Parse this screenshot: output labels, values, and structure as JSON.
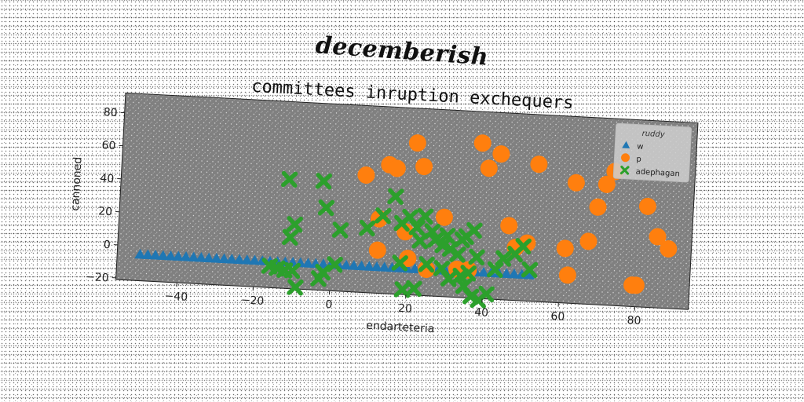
{
  "suptitle": "decemberish",
  "chart_data": {
    "type": "scatter",
    "title": "committees inruption exchequers",
    "xlabel": "endarteteria",
    "ylabel": "cannoned",
    "xlim": [
      -56,
      94
    ],
    "ylim": [
      -21,
      92
    ],
    "xticks": [
      -40,
      -20,
      0,
      20,
      40,
      60,
      80
    ],
    "yticks": [
      -20,
      0,
      20,
      40,
      60,
      80
    ],
    "grid": false,
    "legend": {
      "title": "ruddy",
      "position": "top-right"
    },
    "series": [
      {
        "name": "w",
        "marker": "triangle",
        "color": "#1f77b4",
        "points": [
          [
            -50,
            -5
          ],
          [
            -48,
            -5
          ],
          [
            -46,
            -5
          ],
          [
            -44,
            -5
          ],
          [
            -42,
            -5
          ],
          [
            -40,
            -5
          ],
          [
            -38,
            -5
          ],
          [
            -36,
            -5
          ],
          [
            -34,
            -5
          ],
          [
            -32,
            -5
          ],
          [
            -30,
            -5
          ],
          [
            -28,
            -5
          ],
          [
            -26,
            -5
          ],
          [
            -24,
            -5
          ],
          [
            -22,
            -5
          ],
          [
            -20,
            -5
          ],
          [
            -18,
            -5
          ],
          [
            -16,
            -5
          ],
          [
            -14,
            -5
          ],
          [
            -12,
            -5
          ],
          [
            -10,
            -5
          ],
          [
            -8,
            -5
          ],
          [
            -6,
            -5
          ],
          [
            -4,
            -5
          ],
          [
            -2,
            -5
          ],
          [
            0,
            -5
          ],
          [
            2,
            -5
          ],
          [
            4,
            -5
          ],
          [
            6,
            -5
          ],
          [
            8,
            -5
          ],
          [
            10,
            -5
          ],
          [
            12,
            -5
          ],
          [
            14,
            -5
          ],
          [
            16,
            -5
          ],
          [
            18,
            -5
          ],
          [
            20,
            -5
          ],
          [
            22,
            -5
          ],
          [
            24,
            -5
          ],
          [
            26,
            -5
          ],
          [
            28,
            -5
          ],
          [
            30,
            -5
          ],
          [
            32,
            -5
          ],
          [
            34,
            -5
          ],
          [
            36,
            -5
          ],
          [
            38,
            -5
          ],
          [
            40,
            -5
          ],
          [
            42,
            -5
          ],
          [
            44,
            -5
          ],
          [
            46,
            -5
          ],
          [
            48,
            -5
          ],
          [
            50,
            -5
          ],
          [
            52,
            -5
          ]
        ]
      },
      {
        "name": "p",
        "marker": "circle",
        "color": "#ff7f0e",
        "points": [
          [
            8,
            50
          ],
          [
            14,
            57
          ],
          [
            16,
            55
          ],
          [
            21,
            71
          ],
          [
            23,
            57
          ],
          [
            12,
            24
          ],
          [
            12,
            5
          ],
          [
            19,
            17
          ],
          [
            20,
            1
          ],
          [
            25,
            -5
          ],
          [
            29,
            27
          ],
          [
            33,
            -4
          ],
          [
            36,
            -4
          ],
          [
            38,
            73
          ],
          [
            40,
            58
          ],
          [
            43,
            67
          ],
          [
            46,
            24
          ],
          [
            48,
            11
          ],
          [
            51,
            14
          ],
          [
            53,
            62
          ],
          [
            61,
            12
          ],
          [
            62,
            -4
          ],
          [
            63,
            52
          ],
          [
            67,
            17
          ],
          [
            69,
            38
          ],
          [
            71,
            52
          ],
          [
            73,
            60
          ],
          [
            79,
            -8
          ],
          [
            80,
            -8
          ],
          [
            82,
            40
          ],
          [
            85,
            22
          ],
          [
            88,
            15
          ]
        ]
      },
      {
        "name": "adephagan",
        "marker": "x",
        "color": "#2ca02c",
        "points": [
          [
            -12,
            45
          ],
          [
            -3,
            45
          ],
          [
            -2,
            29
          ],
          [
            -10,
            18
          ],
          [
            -11,
            10
          ],
          [
            -16,
            -8
          ],
          [
            -14,
            -9
          ],
          [
            -12,
            -10
          ],
          [
            -10,
            -10
          ],
          [
            -9,
            -20
          ],
          [
            -3,
            -14
          ],
          [
            -2,
            -10
          ],
          [
            1,
            -5
          ],
          [
            2,
            16
          ],
          [
            9,
            18
          ],
          [
            13,
            26
          ],
          [
            16,
            38
          ],
          [
            18,
            22
          ],
          [
            20,
            26
          ],
          [
            22,
            20
          ],
          [
            23,
            12
          ],
          [
            24,
            27
          ],
          [
            26,
            18
          ],
          [
            27,
            13
          ],
          [
            29,
            10
          ],
          [
            30,
            16
          ],
          [
            31,
            8
          ],
          [
            33,
            5
          ],
          [
            34,
            14
          ],
          [
            35,
            16
          ],
          [
            37,
            20
          ],
          [
            38,
            4
          ],
          [
            18,
            -2
          ],
          [
            19,
            -18
          ],
          [
            22,
            -17
          ],
          [
            25,
            -2
          ],
          [
            29,
            -4
          ],
          [
            31,
            -10
          ],
          [
            35,
            -14
          ],
          [
            37,
            -20
          ],
          [
            39,
            -22
          ],
          [
            41,
            -18
          ],
          [
            43,
            -3
          ],
          [
            45,
            4
          ],
          [
            48,
            7
          ],
          [
            50,
            12
          ],
          [
            52,
            -2
          ],
          [
            34,
            -8
          ],
          [
            36,
            -6
          ]
        ]
      }
    ]
  }
}
